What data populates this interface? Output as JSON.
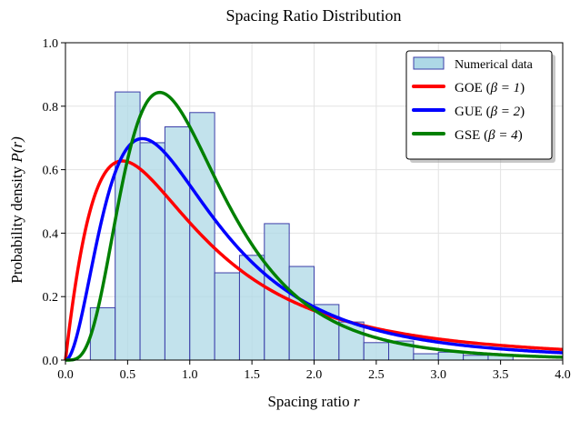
{
  "chart_data": {
    "type": "bar",
    "title": "Spacing Ratio Distribution",
    "xlabel": "Spacing ratio",
    "xlabel_symbol": "r",
    "ylabel": "Probability density",
    "ylabel_symbol": "P(r)",
    "xlim": [
      0,
      4
    ],
    "ylim": [
      0,
      1
    ],
    "xticks": [
      0,
      0.5,
      1,
      1.5,
      2,
      2.5,
      3,
      3.5,
      4
    ],
    "xtick_labels": [
      "0.0",
      "0.5",
      "1.0",
      "1.5",
      "2.0",
      "2.5",
      "3.0",
      "3.5",
      "4.0"
    ],
    "yticks": [
      0,
      0.2,
      0.4,
      0.6,
      0.8,
      1
    ],
    "ytick_labels": [
      "0.0",
      "0.2",
      "0.4",
      "0.6",
      "0.8",
      "1.0"
    ],
    "grid": true,
    "legend_position": "top-right",
    "histogram": {
      "name": "Numerical data",
      "bin_edges": [
        0.2,
        0.4,
        0.6,
        0.8,
        1.0,
        1.2,
        1.4,
        1.6,
        1.8,
        2.0,
        2.2,
        2.4,
        2.6,
        2.8,
        3.0,
        3.2,
        3.4,
        3.6
      ],
      "values": [
        0.165,
        0.845,
        0.685,
        0.735,
        0.78,
        0.275,
        0.33,
        0.43,
        0.295,
        0.175,
        0.12,
        0.055,
        0.06,
        0.02,
        0.025,
        0.015,
        0.015
      ],
      "fill": "#add8e6",
      "edge": "#3b3ea8"
    },
    "series": [
      {
        "name": "GOE",
        "beta_label": "β = 1",
        "beta": 1,
        "color": "#ff0000"
      },
      {
        "name": "GUE",
        "beta_label": "β = 2",
        "beta": 2,
        "color": "#0000ff"
      },
      {
        "name": "GSE",
        "beta_label": "β = 4",
        "beta": 4,
        "color": "#008000"
      }
    ]
  }
}
